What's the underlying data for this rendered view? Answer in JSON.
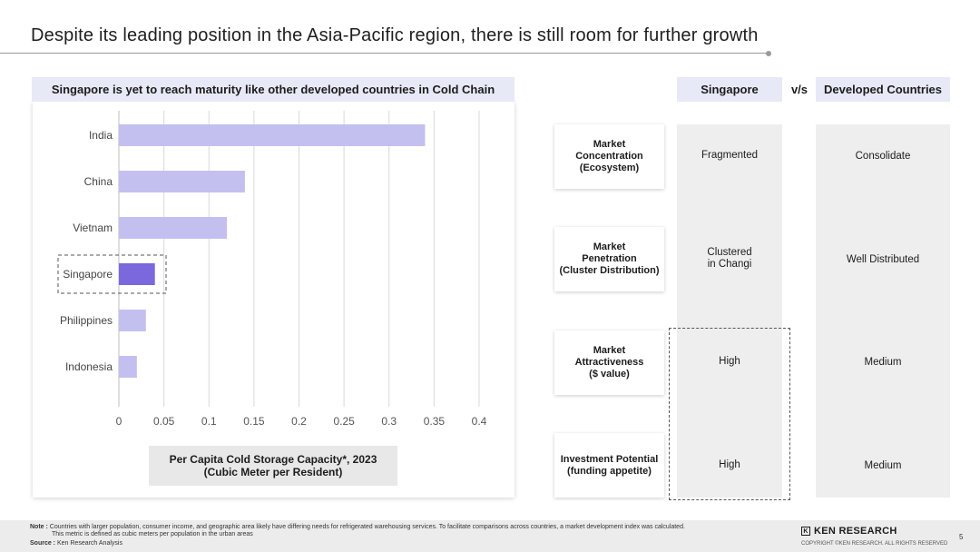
{
  "header": {
    "title": "Despite its leading position in the Asia-Pacific region, there is still room for further growth"
  },
  "chart_panel": {
    "header": "Singapore is yet to reach maturity like other developed countries in Cold Chain",
    "caption_line1": "Per Capita Cold Storage Capacity*, 2023",
    "caption_line2": "(Cubic Meter per Resident)"
  },
  "chart_data": {
    "type": "bar",
    "orientation": "horizontal",
    "title": "Per Capita Cold Storage Capacity*, 2023 (Cubic Meter per Resident)",
    "categories": [
      "India",
      "China",
      "Vietnam",
      "Singapore",
      "Philippines",
      "Indonesia"
    ],
    "values": [
      0.34,
      0.14,
      0.12,
      0.04,
      0.03,
      0.02
    ],
    "highlight": "Singapore",
    "xlim": [
      0,
      0.4
    ],
    "xticks": [
      "0",
      "0.05",
      "0.1",
      "0.15",
      "0.2",
      "0.25",
      "0.3",
      "0.35",
      "0.4"
    ],
    "xtick_values": [
      0,
      0.05,
      0.1,
      0.15,
      0.2,
      0.25,
      0.3,
      0.35,
      0.4
    ],
    "grid": true,
    "colors": {
      "bar": "#c3c0f0",
      "highlight": "#7b68dc",
      "grid": "#d9d9d9"
    }
  },
  "comparison": {
    "col_singapore": "Singapore",
    "vs": "v/s",
    "col_developed": "Developed Countries",
    "rows": [
      {
        "label_lines": [
          "Market",
          "Concentration",
          "(Ecosystem)"
        ],
        "singapore": [
          "Fragmented"
        ],
        "developed": [
          "Consolidate"
        ]
      },
      {
        "label_lines": [
          "Market",
          "Penetration",
          "(Cluster Distribution)"
        ],
        "singapore": [
          "Clustered",
          "in Changi"
        ],
        "developed": [
          "Well Distributed"
        ]
      },
      {
        "label_lines": [
          "Market",
          "Attractiveness",
          "($ value)"
        ],
        "singapore": [
          "High"
        ],
        "developed": [
          "Medium"
        ]
      },
      {
        "label_lines": [
          "Investment Potential",
          "(funding appetite)"
        ],
        "singapore": [
          "High"
        ],
        "developed": [
          "Medium"
        ]
      }
    ]
  },
  "footer": {
    "note_label": "Note :",
    "note_line1": "Countries with larger population, consumer income, and geographic area likely have differing needs for refrigerated warehousing services. To facilitate comparisons across countries, a market development index was calculated.",
    "note_line2": "This metric is defined as cubic meters per population in the urban areas",
    "source_label": "Source :",
    "source_text": "Ken Research Analysis",
    "logo_text": "KEN RESEARCH",
    "logo_mark": "K",
    "copyright": "COPYRIGHT ©KEN RESEARCH. ALL RIGHTS RESERVED",
    "page_number": "5"
  }
}
